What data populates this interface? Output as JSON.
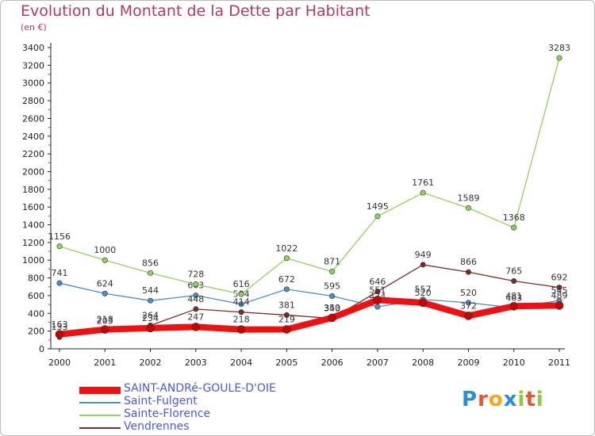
{
  "chart_data": {
    "type": "line",
    "title": "Evolution du Montant de la Dette par Habitant",
    "unit_label": "(en €)",
    "ylim": [
      0,
      3400
    ],
    "yticks": [
      0,
      200,
      400,
      600,
      800,
      1000,
      1200,
      1400,
      1600,
      1800,
      2000,
      2200,
      2400,
      2600,
      2800,
      3000,
      3200,
      3400
    ],
    "x": [
      "2000",
      "2001",
      "2002",
      "2003",
      "2004",
      "2005",
      "2006",
      "2007",
      "2008",
      "2009",
      "2010",
      "2011"
    ],
    "grid": false,
    "legend_position": "bottom-left",
    "series": [
      {
        "name": "Saint-Fulgent",
        "color": "#4a90c8",
        "width": 1.3,
        "values": [
          741,
          624,
          544,
          603,
          504,
          672,
          595,
          474,
          557,
          520,
          463,
          545
        ]
      },
      {
        "name": "Sainte-Florence",
        "color": "#8ed45a",
        "width": 1.3,
        "values": [
          1156,
          1000,
          856,
          728,
          616,
          1022,
          871,
          1495,
          1761,
          1589,
          1368,
          3283
        ]
      },
      {
        "name": "Vendrennes",
        "color": "#7a2b2b",
        "width": 1.3,
        "values": [
          133,
          203,
          264,
          448,
          414,
          381,
          343,
          646,
          949,
          866,
          765,
          692
        ]
      },
      {
        "name": "SAINT-ANDRé-GOULE-D'OIE",
        "color": "#ee1111",
        "width": 8,
        "values": [
          163,
          218,
          234,
          247,
          218,
          219,
          350,
          551,
          520,
          372,
          481,
          489
        ]
      }
    ]
  },
  "logo": {
    "text": "Proxiti",
    "letters": [
      "P",
      "r",
      "o",
      "x",
      "i",
      "t",
      "i"
    ]
  }
}
